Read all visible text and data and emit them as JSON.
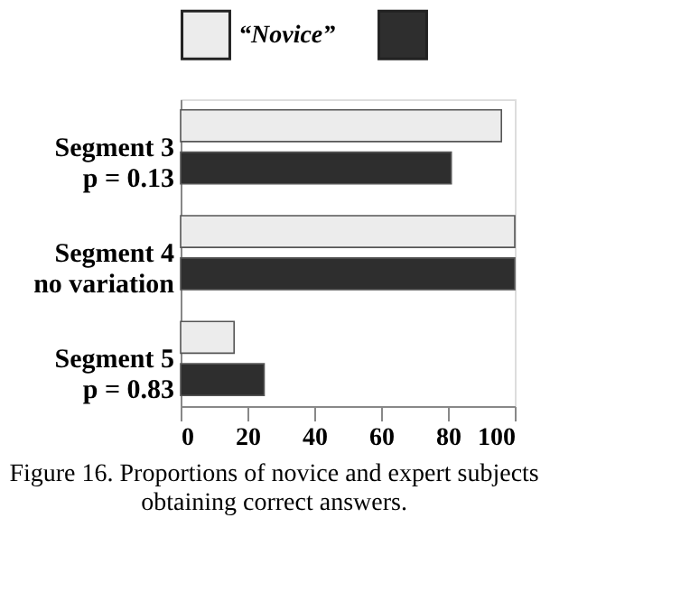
{
  "chart_data": {
    "type": "bar",
    "orientation": "horizontal",
    "categories": [
      "Segment 3\np = 0.13",
      "Segment 4\nno variation",
      "Segment 5\np = 0.83"
    ],
    "series": [
      {
        "name": "“Novice”",
        "color": "#ececec",
        "values": [
          96,
          100,
          16
        ]
      },
      {
        "color": "#2e2e2e",
        "values": [
          81,
          100,
          25
        ]
      }
    ],
    "xlim": [
      0,
      100
    ],
    "xticks": [
      0,
      20,
      40,
      60,
      80,
      100
    ],
    "grid": false,
    "legend": "top",
    "annotations": [
      "Figure 16. Proportions of novice and expert subjects obtaining correct answers."
    ]
  }
}
